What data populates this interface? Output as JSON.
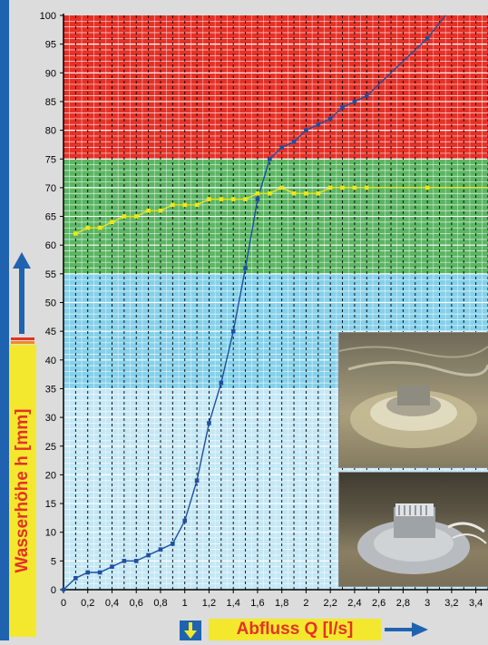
{
  "chart_data": {
    "type": "line",
    "xlabel": "Abfluss Q [l/s]",
    "ylabel": "Wasserhöhe h [mm]",
    "xlim": [
      0,
      3.5
    ],
    "ylim": [
      0,
      100
    ],
    "x_ticks": [
      "0",
      "0,2",
      "0,4",
      "0,6",
      "0,8",
      "1",
      "1,2",
      "1,4",
      "1,6",
      "1,8",
      "2",
      "2,2",
      "2,4",
      "2,6",
      "2,8",
      "3",
      "3,2",
      "3,4"
    ],
    "y_ticks": [
      "0",
      "5",
      "10",
      "15",
      "20",
      "25",
      "30",
      "35",
      "40",
      "45",
      "50",
      "55",
      "60",
      "65",
      "70",
      "75",
      "80",
      "85",
      "90",
      "95",
      "100"
    ],
    "zones": [
      {
        "from": 75,
        "to": 100,
        "color": "#e53127"
      },
      {
        "from": 55,
        "to": 75,
        "color": "#5cb563"
      },
      {
        "from": 35,
        "to": 55,
        "color": "#85d0ea"
      },
      {
        "from": 0,
        "to": 35,
        "color": "#c4e7f5"
      }
    ],
    "series": [
      {
        "color": "#1f4fa0",
        "points": [
          [
            0,
            0
          ],
          [
            0.1,
            2
          ],
          [
            0.2,
            3
          ],
          [
            0.3,
            3
          ],
          [
            0.4,
            4
          ],
          [
            0.5,
            5
          ],
          [
            0.6,
            5
          ],
          [
            0.7,
            6
          ],
          [
            0.8,
            7
          ],
          [
            0.9,
            8
          ],
          [
            1.0,
            12
          ],
          [
            1.1,
            19
          ],
          [
            1.2,
            29
          ],
          [
            1.3,
            36
          ],
          [
            1.4,
            45
          ],
          [
            1.5,
            56
          ],
          [
            1.6,
            68
          ],
          [
            1.7,
            75
          ],
          [
            1.8,
            77
          ],
          [
            1.9,
            78
          ],
          [
            2.0,
            80
          ],
          [
            2.1,
            81
          ],
          [
            2.2,
            82
          ],
          [
            2.3,
            84
          ],
          [
            2.4,
            85
          ],
          [
            2.5,
            86
          ],
          [
            3.0,
            96
          ],
          [
            3.15,
            100
          ]
        ]
      },
      {
        "color": "#f0e61a",
        "points": [
          [
            0.1,
            62
          ],
          [
            0.2,
            63
          ],
          [
            0.3,
            63
          ],
          [
            0.4,
            64
          ],
          [
            0.5,
            65
          ],
          [
            0.6,
            65
          ],
          [
            0.7,
            66
          ],
          [
            0.8,
            66
          ],
          [
            0.9,
            67
          ],
          [
            1.0,
            67
          ],
          [
            1.1,
            67
          ],
          [
            1.2,
            68
          ],
          [
            1.3,
            68
          ],
          [
            1.4,
            68
          ],
          [
            1.5,
            68
          ],
          [
            1.6,
            69
          ],
          [
            1.7,
            69
          ],
          [
            1.8,
            70
          ],
          [
            1.9,
            69
          ],
          [
            2.0,
            69
          ],
          [
            2.1,
            69
          ],
          [
            2.2,
            70
          ],
          [
            2.3,
            70
          ],
          [
            2.4,
            70
          ],
          [
            2.5,
            70
          ],
          [
            3.0,
            70
          ],
          [
            3.5,
            70
          ]
        ]
      }
    ]
  },
  "photos": [
    {
      "name": "photo-drain-flowing"
    },
    {
      "name": "photo-drain-dry"
    }
  ]
}
